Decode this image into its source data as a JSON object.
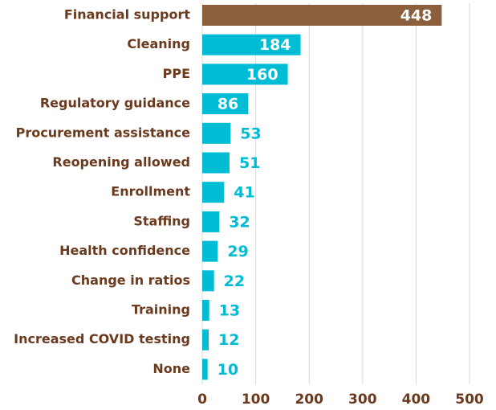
{
  "chart_data": {
    "type": "bar",
    "orientation": "horizontal",
    "categories": [
      "Financial support",
      "Cleaning",
      "PPE",
      "Regulatory guidance",
      "Procurement assistance",
      "Reopening allowed",
      "Enrollment",
      "Staffing",
      "Health confidence",
      "Change in ratios",
      "Training",
      "Increased COVID testing",
      "None"
    ],
    "values": [
      448,
      184,
      160,
      86,
      53,
      51,
      41,
      32,
      29,
      22,
      13,
      12,
      10
    ],
    "colors": [
      "#8b5e3c",
      "#00bcd4",
      "#00bcd4",
      "#00bcd4",
      "#00bcd4",
      "#00bcd4",
      "#00bcd4",
      "#00bcd4",
      "#00bcd4",
      "#00bcd4",
      "#00bcd4",
      "#00bcd4",
      "#00bcd4"
    ],
    "xlim": [
      0,
      500
    ],
    "xticks": [
      0,
      100,
      200,
      300,
      400,
      500
    ],
    "grid": true
  }
}
